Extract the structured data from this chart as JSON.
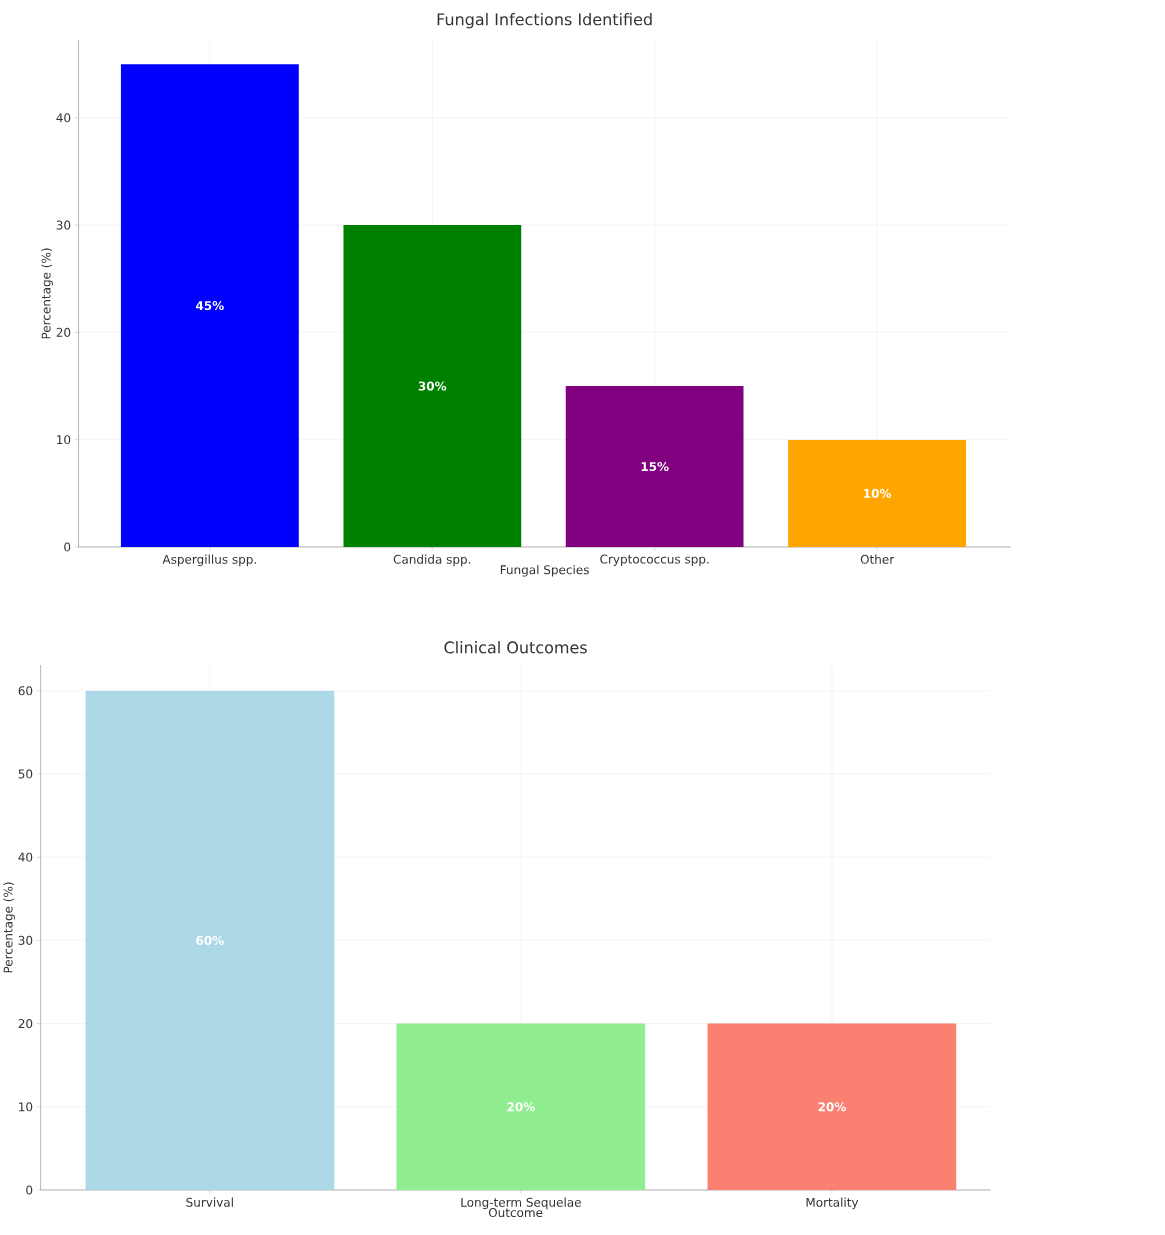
{
  "chart_data": [
    {
      "type": "bar",
      "title": "Fungal Infections Identified",
      "xlabel": "Fungal Species",
      "ylabel": "Percentage (%)",
      "categories": [
        "Aspergillus spp.",
        "Candida spp.",
        "Cryptococcus spp.",
        "Other"
      ],
      "values": [
        45,
        30,
        15,
        10
      ],
      "colors": [
        "#0000ff",
        "#008000",
        "#800080",
        "#ffa500"
      ],
      "value_labels": [
        "45%",
        "30%",
        "15%",
        "10%"
      ],
      "ylim": [
        0,
        47.25
      ],
      "yticks": [
        0,
        10,
        20,
        30,
        40
      ],
      "grid": true
    },
    {
      "type": "bar",
      "title": "Clinical Outcomes",
      "xlabel": "Outcome",
      "ylabel": "Percentage (%)",
      "categories": [
        "Survival",
        "Long-term Sequelae",
        "Mortality"
      ],
      "values": [
        60,
        20,
        20
      ],
      "colors": [
        "#add8e6",
        "#90ee90",
        "#fa8072"
      ],
      "value_labels": [
        "60%",
        "20%",
        "20%"
      ],
      "ylim": [
        0,
        63.1
      ],
      "yticks": [
        0,
        10,
        20,
        30,
        40,
        50,
        60
      ],
      "grid": true
    }
  ]
}
